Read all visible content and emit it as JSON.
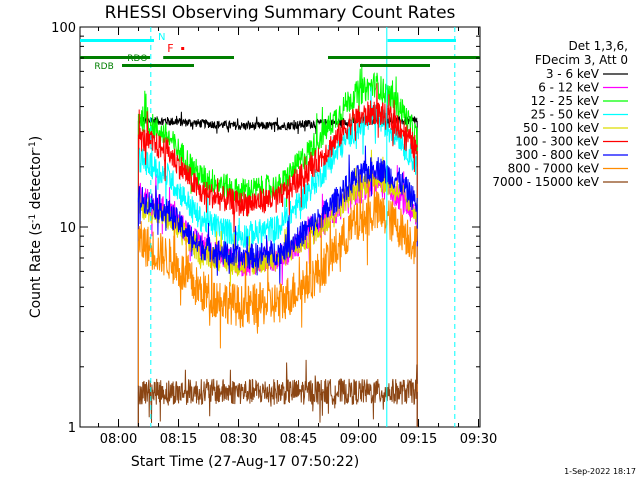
{
  "chart_data": {
    "type": "line",
    "title": "RHESSI Observing Summary Count Rates",
    "xlabel": "Start Time (27-Aug-17 07:50:22)",
    "ylabel_main": "Count Rate (s",
    "ylabel_sup": "-1",
    "ylabel_tail": " detector",
    "ylabel_end": ")",
    "yscale": "log",
    "ylim": [
      1,
      100
    ],
    "xlim_minutes": [
      0,
      100
    ],
    "x_tick_labels": [
      "08:00",
      "08:15",
      "08:30",
      "08:45",
      "09:00",
      "09:15",
      "09:30"
    ],
    "x_tick_minutes": [
      9.63,
      24.63,
      39.63,
      54.63,
      69.63,
      84.63,
      99.63
    ],
    "y_tick_labels": [
      "1",
      "10",
      "100"
    ],
    "y_tick_values": [
      1,
      10,
      100
    ],
    "legend_header": [
      "Det 1,3,6,",
      "FDecim 3, Att 0"
    ],
    "series": [
      {
        "name": "3 - 6 keV",
        "color": "#000000",
        "values": [
          [
            14.6,
            34
          ],
          [
            20,
            34
          ],
          [
            30,
            33
          ],
          [
            40,
            32
          ],
          [
            50,
            32
          ],
          [
            60,
            33
          ],
          [
            70,
            34
          ],
          [
            80,
            34
          ],
          [
            84.3,
            34
          ]
        ]
      },
      {
        "name": "6 - 12 keV",
        "color": "#ff00ff",
        "values": [
          [
            14.6,
            14
          ],
          [
            22,
            12
          ],
          [
            30,
            8
          ],
          [
            40,
            6.5
          ],
          [
            50,
            7
          ],
          [
            60,
            10
          ],
          [
            68,
            14
          ],
          [
            74,
            17
          ],
          [
            80,
            14
          ],
          [
            84.3,
            11
          ]
        ]
      },
      {
        "name": "12 - 25 keV",
        "color": "#00ff00",
        "values": [
          [
            14.6,
            36
          ],
          [
            22,
            28
          ],
          [
            30,
            18
          ],
          [
            40,
            15
          ],
          [
            50,
            16
          ],
          [
            60,
            28
          ],
          [
            68,
            45
          ],
          [
            74,
            52
          ],
          [
            80,
            40
          ],
          [
            84.3,
            28
          ]
        ]
      },
      {
        "name": "25 - 50 keV",
        "color": "#00ffff",
        "values": [
          [
            14.6,
            22
          ],
          [
            22,
            18
          ],
          [
            30,
            11
          ],
          [
            40,
            9
          ],
          [
            50,
            10
          ],
          [
            60,
            18
          ],
          [
            68,
            30
          ],
          [
            74,
            36
          ],
          [
            80,
            28
          ],
          [
            84.3,
            20
          ]
        ]
      },
      {
        "name": "50 - 100 keV",
        "color": "#dddd00",
        "values": [
          [
            14.6,
            13
          ],
          [
            22,
            11
          ],
          [
            30,
            7.5
          ],
          [
            40,
            6.5
          ],
          [
            50,
            7
          ],
          [
            60,
            10
          ],
          [
            68,
            15
          ],
          [
            74,
            18
          ],
          [
            80,
            15
          ],
          [
            84.3,
            12
          ]
        ]
      },
      {
        "name": "100 - 300 keV",
        "color": "#ff0000",
        "values": [
          [
            14.6,
            28
          ],
          [
            22,
            24
          ],
          [
            30,
            15
          ],
          [
            40,
            13
          ],
          [
            50,
            14
          ],
          [
            60,
            22
          ],
          [
            68,
            34
          ],
          [
            74,
            38
          ],
          [
            80,
            32
          ],
          [
            84.3,
            24
          ]
        ]
      },
      {
        "name": "300 - 800 keV",
        "color": "#0000ff",
        "values": [
          [
            14.6,
            14
          ],
          [
            22,
            12
          ],
          [
            30,
            8
          ],
          [
            40,
            7
          ],
          [
            50,
            7.5
          ],
          [
            60,
            11
          ],
          [
            68,
            17
          ],
          [
            74,
            20
          ],
          [
            80,
            17
          ],
          [
            84.3,
            13
          ]
        ]
      },
      {
        "name": "800 - 7000 keV",
        "color": "#ff8c00",
        "values": [
          [
            14.6,
            8.5
          ],
          [
            22,
            7
          ],
          [
            30,
            4.8
          ],
          [
            40,
            4
          ],
          [
            50,
            4.2
          ],
          [
            60,
            6
          ],
          [
            68,
            10
          ],
          [
            74,
            12
          ],
          [
            80,
            10
          ],
          [
            84.3,
            8
          ]
        ]
      },
      {
        "name": "7000 - 15000 keV",
        "color": "#8b4513",
        "values": [
          [
            14.6,
            1.5
          ],
          [
            84.3,
            1.5
          ]
        ]
      }
    ],
    "flags": {
      "N_label": "N",
      "F_label": "F",
      "RDO_label": "RDO",
      "RDB_label": "RDB"
    }
  },
  "footer": {
    "timestamp": "1-Sep-2022 18:17"
  }
}
